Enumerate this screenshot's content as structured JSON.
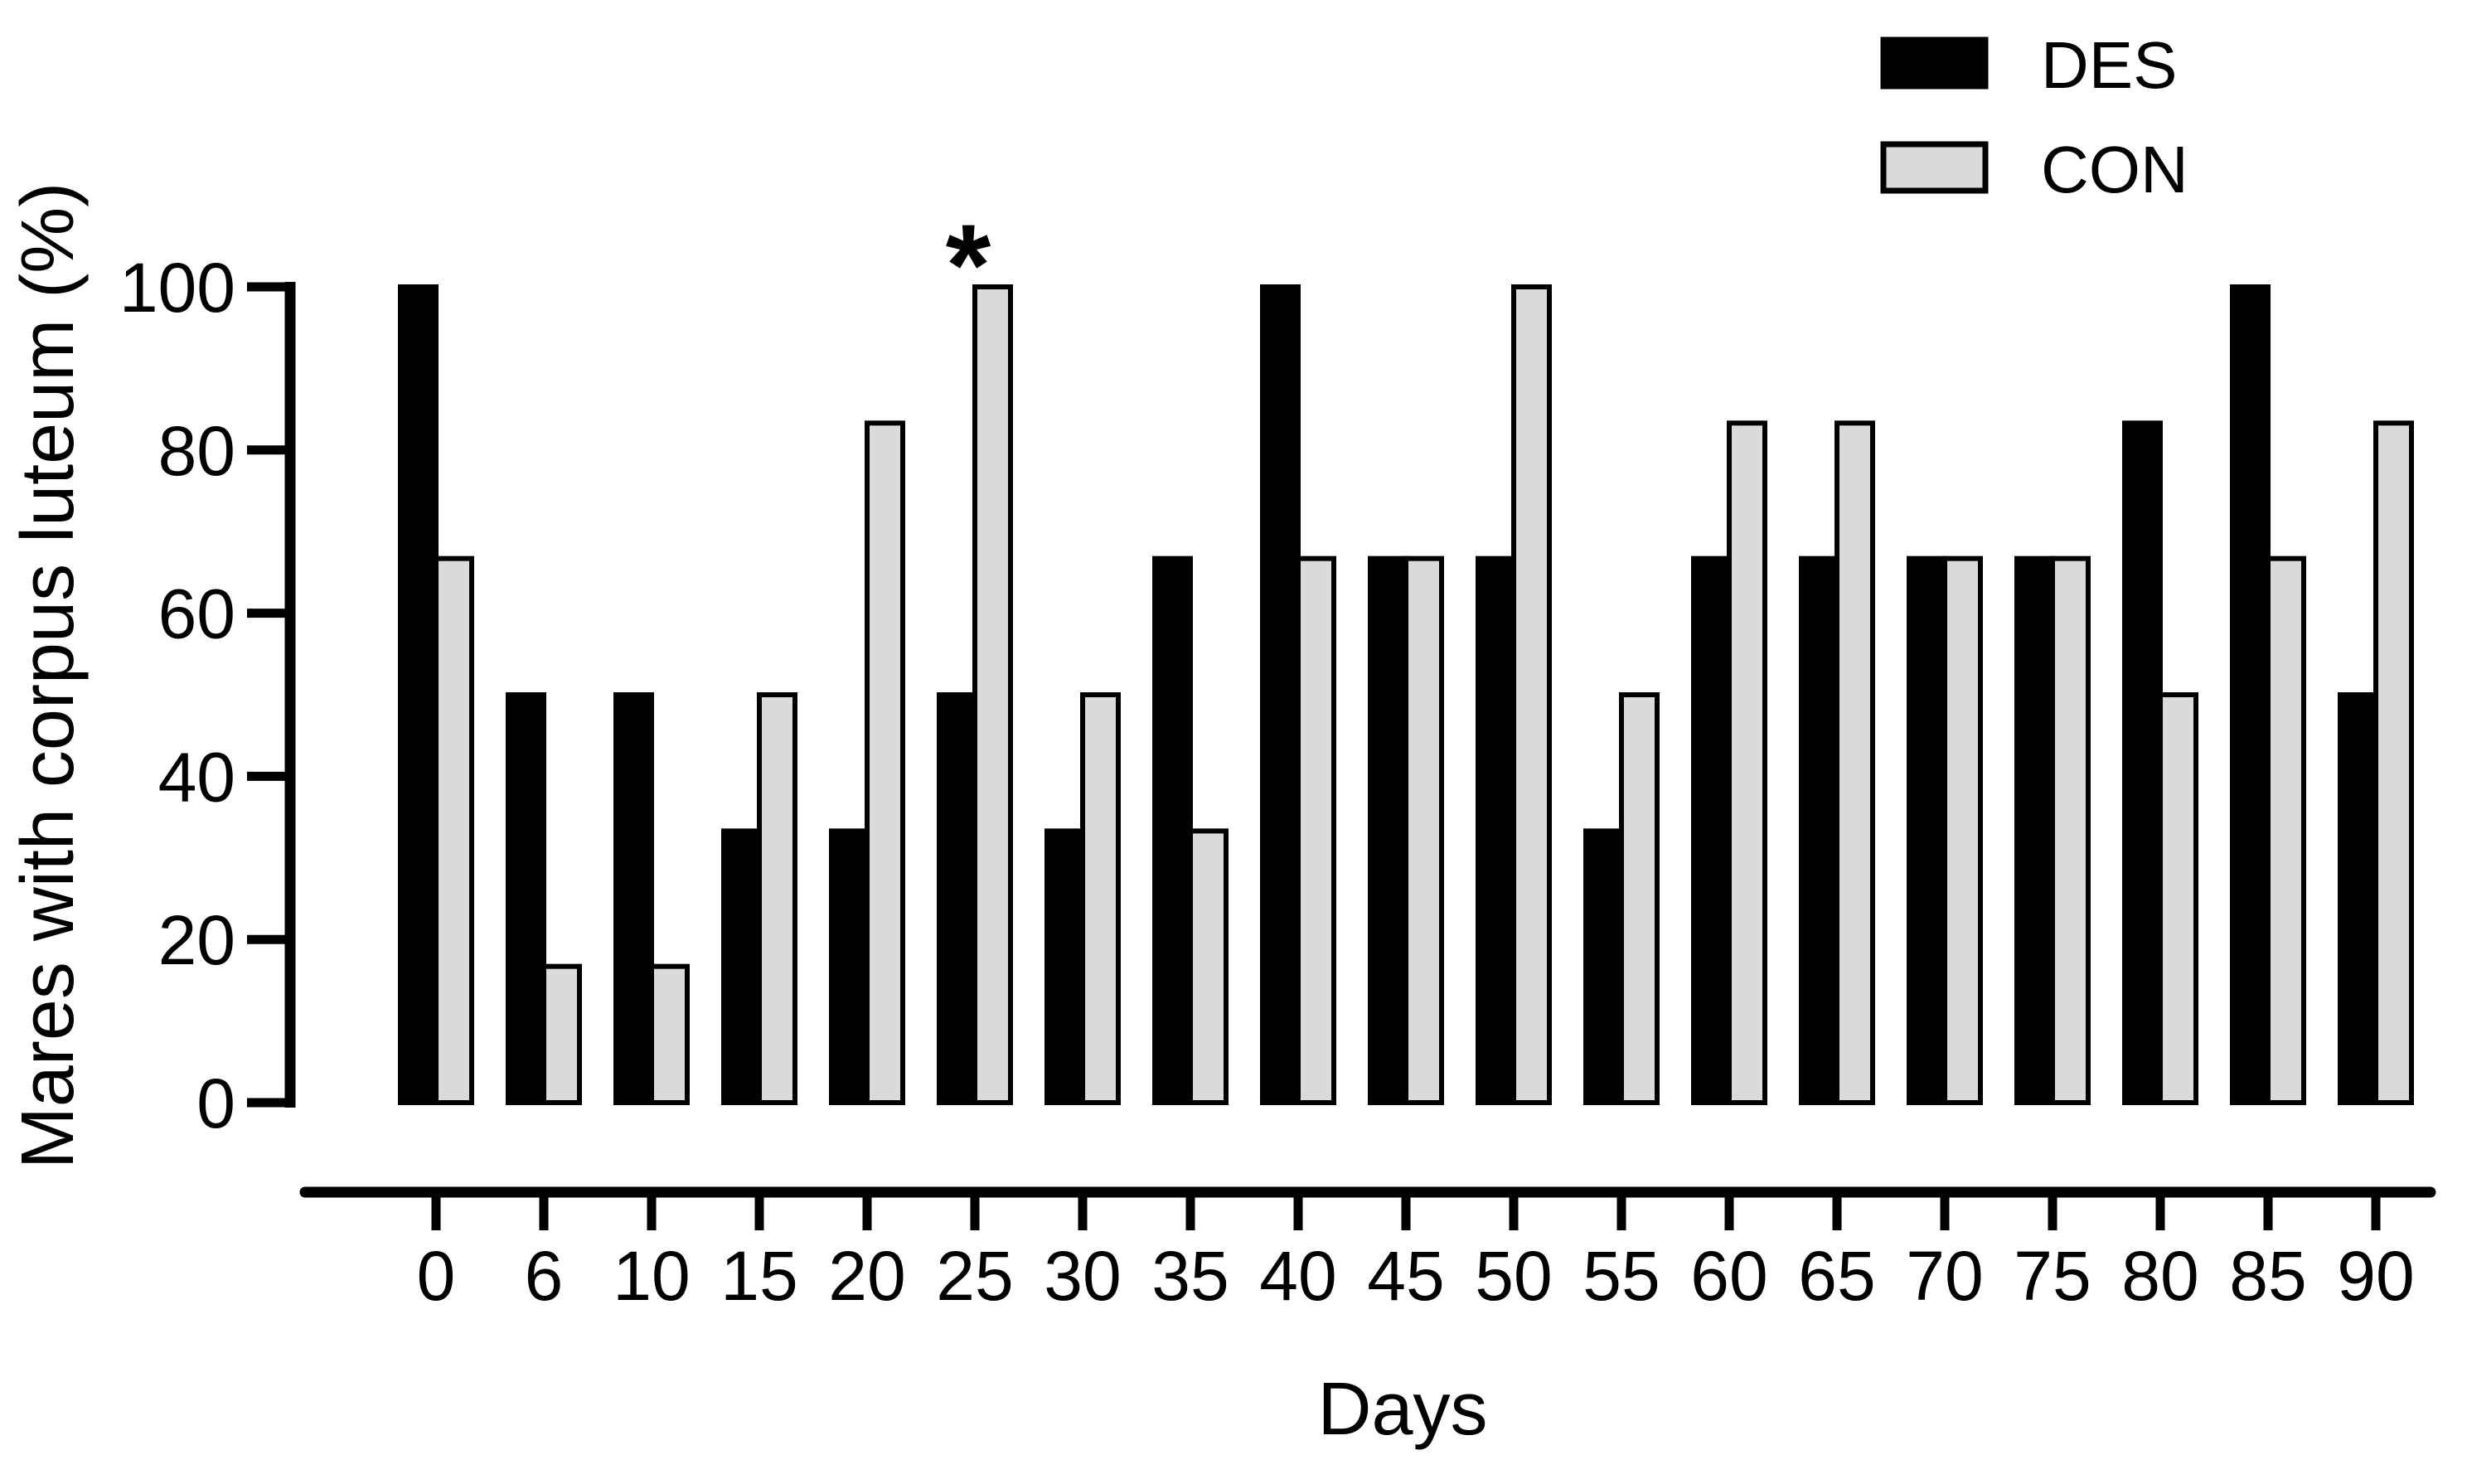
{
  "chart_data": {
    "type": "bar",
    "title": "",
    "xlabel": "Days",
    "ylabel": "Mares with corpus luteum (%)",
    "categories": [
      "0",
      "6",
      "10",
      "15",
      "20",
      "25",
      "30",
      "35",
      "40",
      "45",
      "50",
      "55",
      "60",
      "65",
      "70",
      "75",
      "80",
      "85",
      "90"
    ],
    "series": [
      {
        "name": "DES",
        "color": "#000000",
        "values": [
          100,
          50,
          50,
          33.3,
          33.3,
          50,
          33.3,
          66.7,
          100,
          66.7,
          66.7,
          33.3,
          66.7,
          66.7,
          66.7,
          66.7,
          83.3,
          100,
          50
        ]
      },
      {
        "name": "CON",
        "color": "#dadada",
        "values": [
          66.7,
          16.7,
          16.7,
          50,
          83.3,
          100,
          50,
          33.3,
          66.7,
          66.7,
          100,
          50,
          83.3,
          83.3,
          66.7,
          66.7,
          50,
          66.7,
          83.3
        ]
      }
    ],
    "ylim": [
      0,
      100
    ],
    "yticks": [
      0,
      20,
      40,
      60,
      80,
      100
    ],
    "grid": false,
    "bar_outline_color": "#000000",
    "background_color": "#ffffff",
    "legend_position": "top-right",
    "annotations": [
      {
        "text": "*",
        "category": "25",
        "series": "CON"
      }
    ]
  }
}
